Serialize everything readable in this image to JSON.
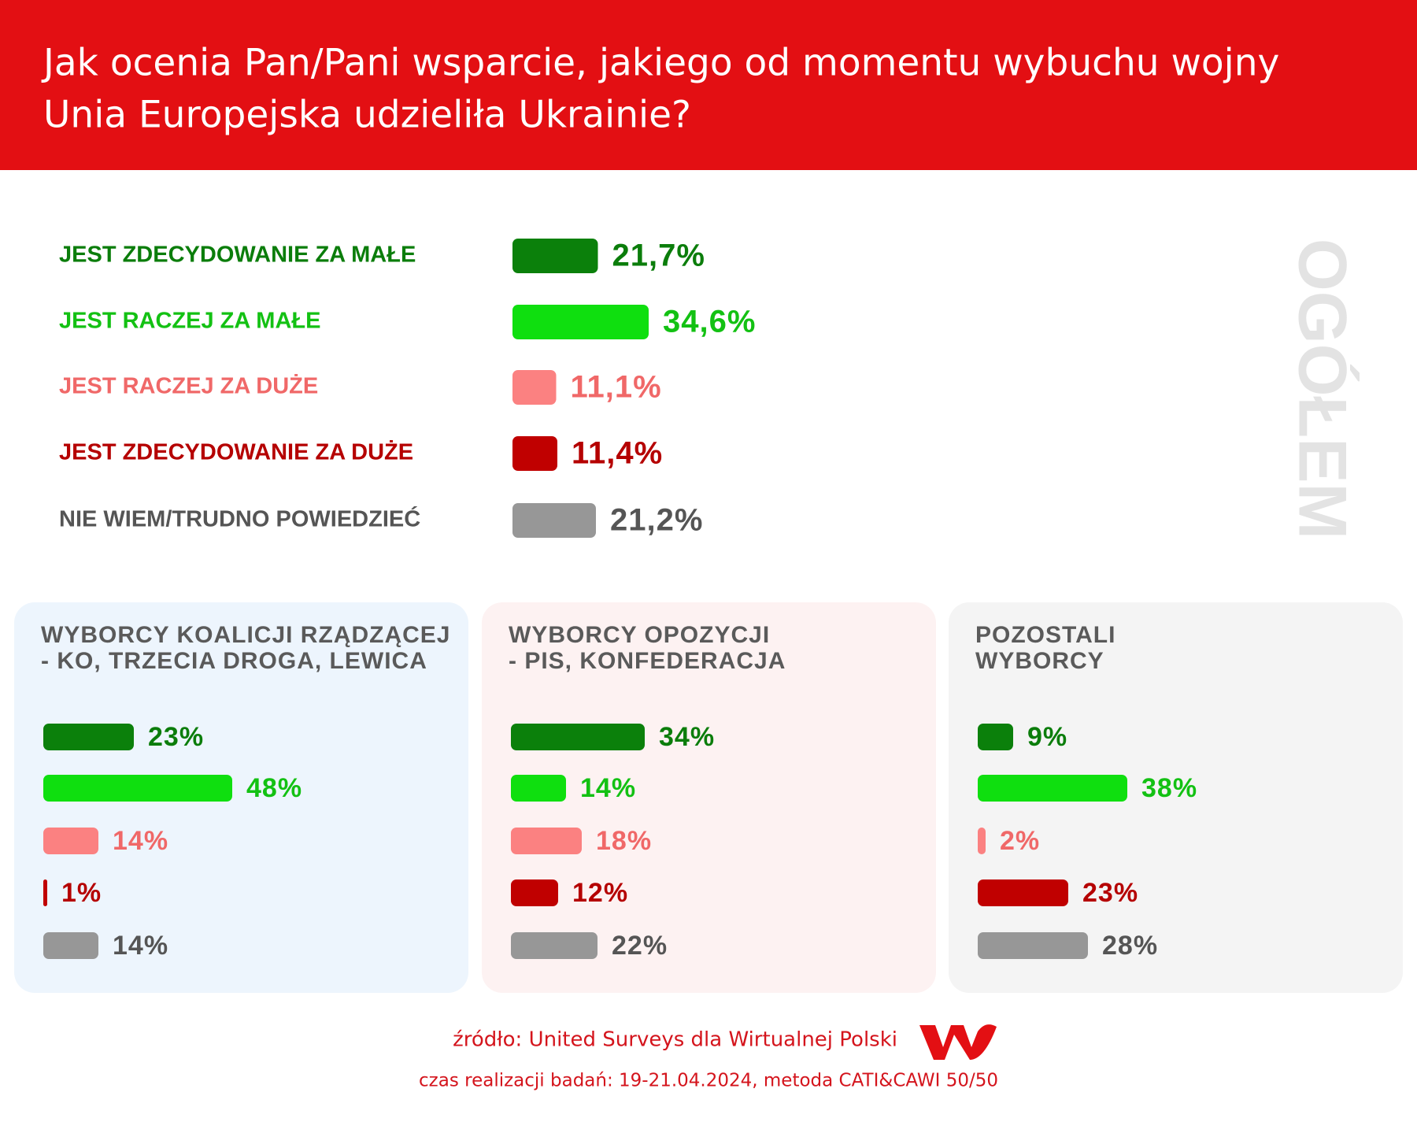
{
  "title": [
    "Jak ocenia Pan/Pani wsparcie, jakiego od momentu wybuchu wojny",
    "Unia Europejska udzieliła Ukrainie?"
  ],
  "chart_data": [
    {
      "type": "bar",
      "orientation": "horizontal",
      "label": "OGÓŁEM",
      "categories": [
        "JEST ZDECYDOWANIE ZA MAŁE",
        "JEST RACZEJ ZA MAŁE",
        "JEST RACZEJ ZA DUŻE",
        "JEST ZDECYDOWANIE ZA DUŻE",
        "NIE WIEM/TRUDNO POWIEDZIEĆ"
      ],
      "values": [
        21.7,
        34.6,
        11.1,
        11.4,
        21.2
      ],
      "value_labels": [
        "21,7%",
        "34,6%",
        "11,1%",
        "11,4%",
        "21,2%"
      ],
      "colors": [
        "#0b800b",
        "#0fdf0f",
        "#fb8181",
        "#c00000",
        "#979797"
      ],
      "label_colors": [
        "#0b7d0b",
        "#13c113",
        "#f06868",
        "#b50000",
        "#555555"
      ]
    },
    {
      "type": "bar",
      "orientation": "horizontal",
      "title": [
        "WYBORCY KOALICJI RZĄDZĄCEJ",
        "- KO, TRZECIA DROGA, LEWICA"
      ],
      "background": "#edf5fd",
      "values": [
        23,
        48,
        14,
        1,
        14
      ],
      "value_labels": [
        "23%",
        "48%",
        "14%",
        "1%",
        "14%"
      ],
      "colors": [
        "#0b800b",
        "#0fdf0f",
        "#fb8181",
        "#c00000",
        "#979797"
      ],
      "label_colors": [
        "#0b7d0b",
        "#13c113",
        "#f06868",
        "#b50000",
        "#555555"
      ]
    },
    {
      "type": "bar",
      "orientation": "horizontal",
      "title": [
        "WYBORCY OPOZYCJI",
        "- PIS, KONFEDERACJA"
      ],
      "background": "#fdf2f2",
      "values": [
        34,
        14,
        18,
        12,
        22
      ],
      "value_labels": [
        "34%",
        "14%",
        "18%",
        "12%",
        "22%"
      ],
      "colors": [
        "#0b800b",
        "#0fdf0f",
        "#fb8181",
        "#c00000",
        "#979797"
      ],
      "label_colors": [
        "#0b7d0b",
        "#13c113",
        "#f06868",
        "#b50000",
        "#555555"
      ]
    },
    {
      "type": "bar",
      "orientation": "horizontal",
      "title": [
        "POZOSTALI",
        "WYBORCY"
      ],
      "background": "#f4f4f4",
      "values": [
        9,
        38,
        2,
        23,
        28
      ],
      "value_labels": [
        "9%",
        "38%",
        "2%",
        "23%",
        "28%"
      ],
      "colors": [
        "#0b800b",
        "#0fdf0f",
        "#fb8181",
        "#c00000",
        "#979797"
      ],
      "label_colors": [
        "#0b7d0b",
        "#13c113",
        "#f06868",
        "#b50000",
        "#555555"
      ]
    }
  ],
  "source": "źródło: United Surveys dla Wirtualnej Polski",
  "footer": "czas realizacji badań: 19-21.04.2024, metoda CATI&CAWI 50/50"
}
